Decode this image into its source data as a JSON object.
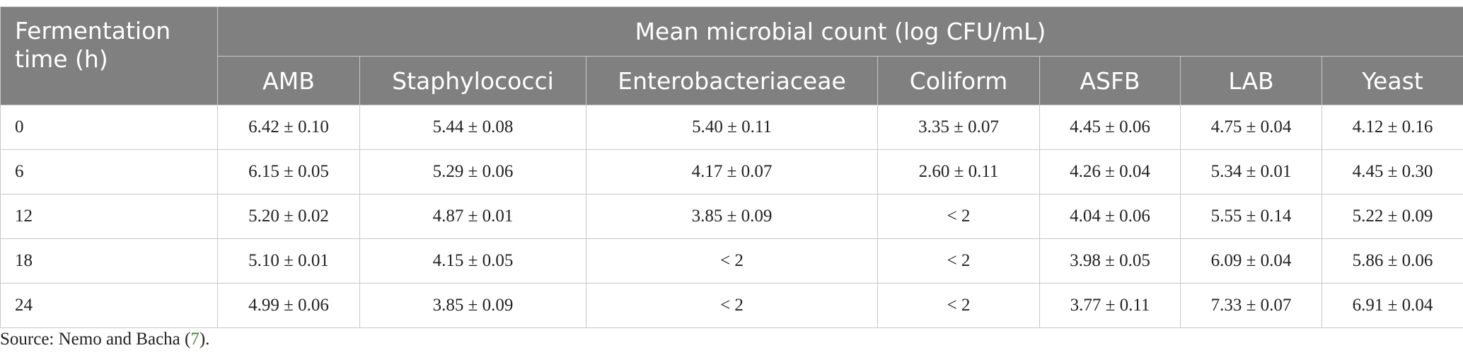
{
  "header": {
    "row_label": "Fermentation time (h)",
    "group": "Mean microbial count (log CFU/mL)",
    "columns": [
      "AMB",
      "Staphylococci",
      "Enterobacteriaceae",
      "Coliform",
      "ASFB",
      "LAB",
      "Yeast"
    ]
  },
  "table": {
    "rows": [
      [
        "0",
        "6.42 ± 0.10",
        "5.44 ± 0.08",
        "5.40 ± 0.11",
        "3.35 ± 0.07",
        "4.45 ± 0.06",
        "4.75 ± 0.04",
        "4.12 ± 0.16"
      ],
      [
        "6",
        "6.15 ± 0.05",
        "5.29 ± 0.06",
        "4.17 ± 0.07",
        "2.60 ± 0.11",
        "4.26 ± 0.04",
        "5.34 ± 0.01",
        "4.45 ± 0.30"
      ],
      [
        "12",
        "5.20 ± 0.02",
        "4.87 ± 0.01",
        "3.85 ± 0.09",
        "< 2",
        "4.04 ± 0.06",
        "5.55 ± 0.14",
        "5.22 ± 0.09"
      ],
      [
        "18",
        "5.10 ± 0.01",
        "4.15 ± 0.05",
        "< 2",
        "< 2",
        "3.98 ± 0.05",
        "6.09 ± 0.04",
        "5.86 ± 0.06"
      ],
      [
        "24",
        "4.99 ± 0.06",
        "3.85 ± 0.09",
        "< 2",
        "< 2",
        "3.77 ± 0.11",
        "7.33 ± 0.07",
        "6.91 ± 0.04"
      ]
    ]
  },
  "footnote": {
    "text_before": "Source: Nemo and Bacha (",
    "ref": "7",
    "text_after": ")."
  }
}
